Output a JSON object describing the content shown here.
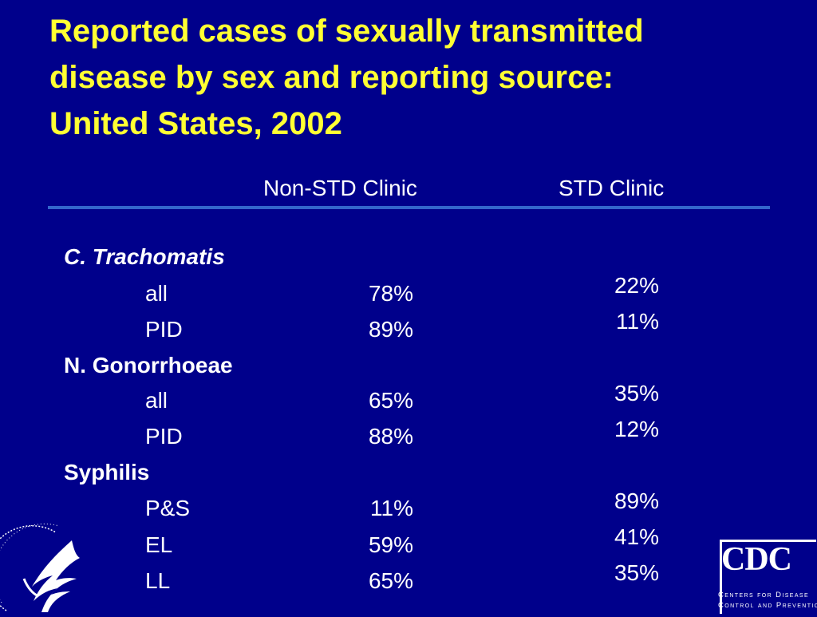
{
  "slide": {
    "title_lines": [
      "Reported cases of sexually transmitted",
      "disease by sex and reporting source:",
      "United States, 2002"
    ],
    "columns": {
      "non_std": "Non-STD Clinic",
      "std": "STD Clinic"
    },
    "groups": [
      {
        "name": "C. Trachomatis",
        "rows": [
          {
            "label": "all",
            "non_std": "78%",
            "std": "22%"
          },
          {
            "label": "PID",
            "non_std": "89%",
            "std": "11%"
          }
        ]
      },
      {
        "name": "N. Gonorrhoeae",
        "rows": [
          {
            "label": "all",
            "non_std": "65%",
            "std": "35%"
          },
          {
            "label": "PID",
            "non_std": "88%",
            "std": "12%"
          }
        ]
      },
      {
        "name": "Syphilis",
        "rows": [
          {
            "label": "P&S",
            "non_std": "11%",
            "std": "89%"
          },
          {
            "label": "EL",
            "non_std": "59%",
            "std": "41%"
          },
          {
            "label": "LL",
            "non_std": "65%",
            "std": "35%"
          }
        ]
      }
    ]
  },
  "logos": {
    "hhs": {
      "icon": "hhs-eagle-seal-icon"
    },
    "cdc": {
      "wordmark": "CDC",
      "line1": "Centers for Disease",
      "line2": "Control and Prevention"
    }
  },
  "colors": {
    "background": "#00008b",
    "title": "#ffff33",
    "text": "#ffffff",
    "rule": "#3366cc"
  }
}
